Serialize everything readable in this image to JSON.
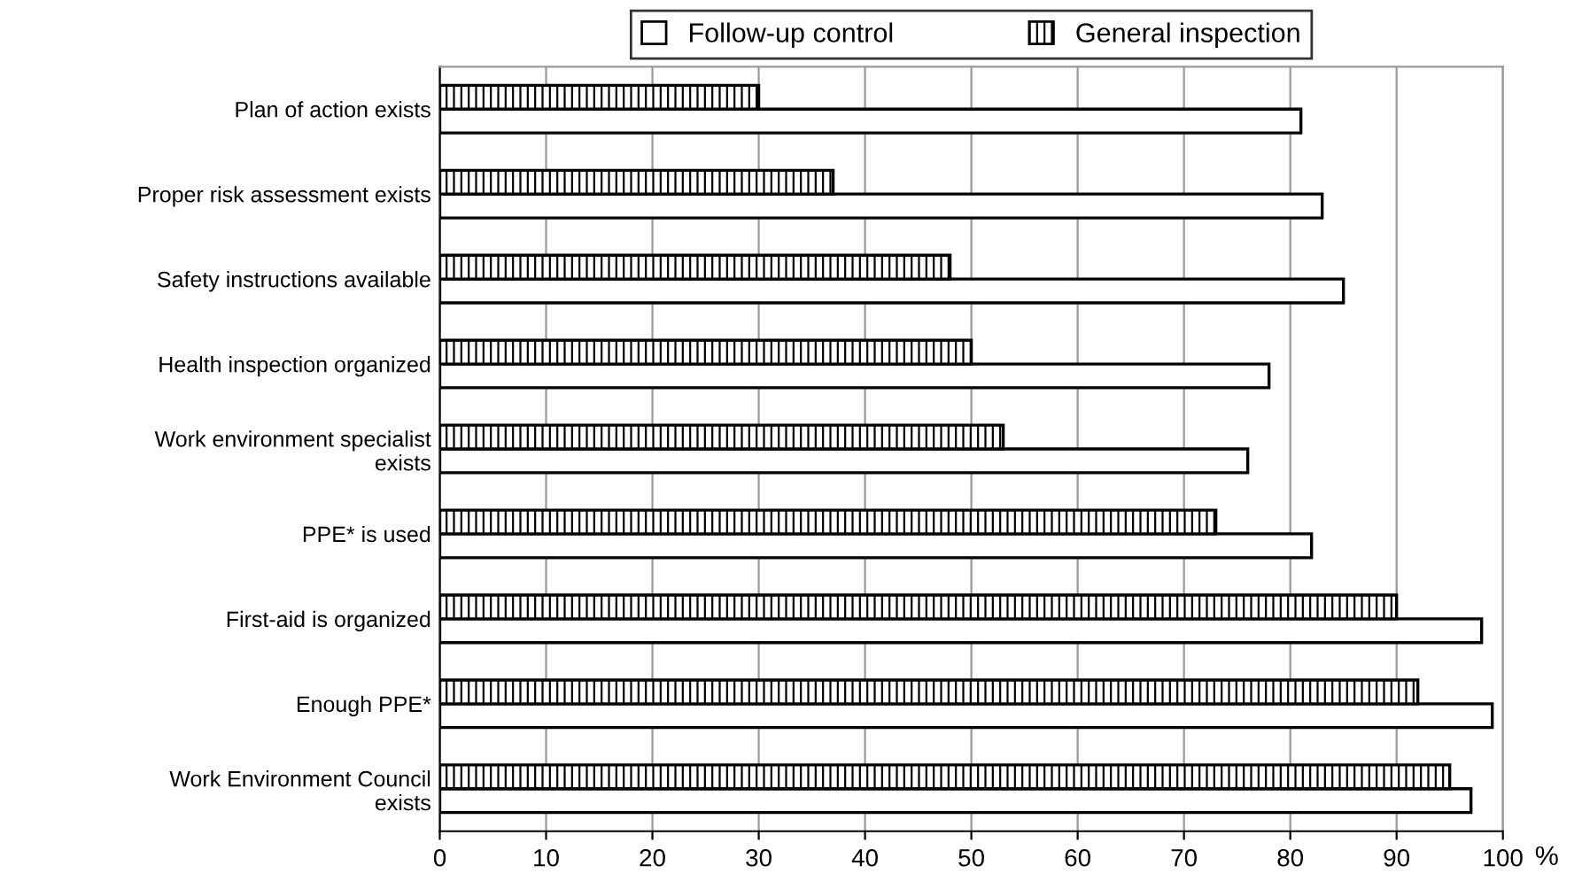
{
  "chart_data": {
    "type": "bar",
    "orientation": "horizontal",
    "xlabel": "%",
    "categories": [
      "Plan of action exists",
      "Proper risk assessment exists",
      "Safety instructions available",
      "Health inspection organized",
      "Work environment specialist\nexists",
      "PPE* is used",
      "First-aid is organized",
      "Enough PPE*",
      "Work Environment Council\nexists"
    ],
    "series": [
      {
        "name": "Follow-up control",
        "color": "#ffffff",
        "values": [
          81,
          83,
          85,
          78,
          76,
          82,
          98,
          99,
          97
        ]
      },
      {
        "name": "General inspection",
        "color": "#000000",
        "values": [
          30,
          37,
          48,
          50,
          53,
          73,
          90,
          92,
          95
        ]
      }
    ],
    "xlim": [
      0,
      100
    ],
    "xticks": [
      0,
      10,
      20,
      30,
      40,
      50,
      60,
      70,
      80,
      90,
      100
    ],
    "grid": "x",
    "legend": "top"
  }
}
